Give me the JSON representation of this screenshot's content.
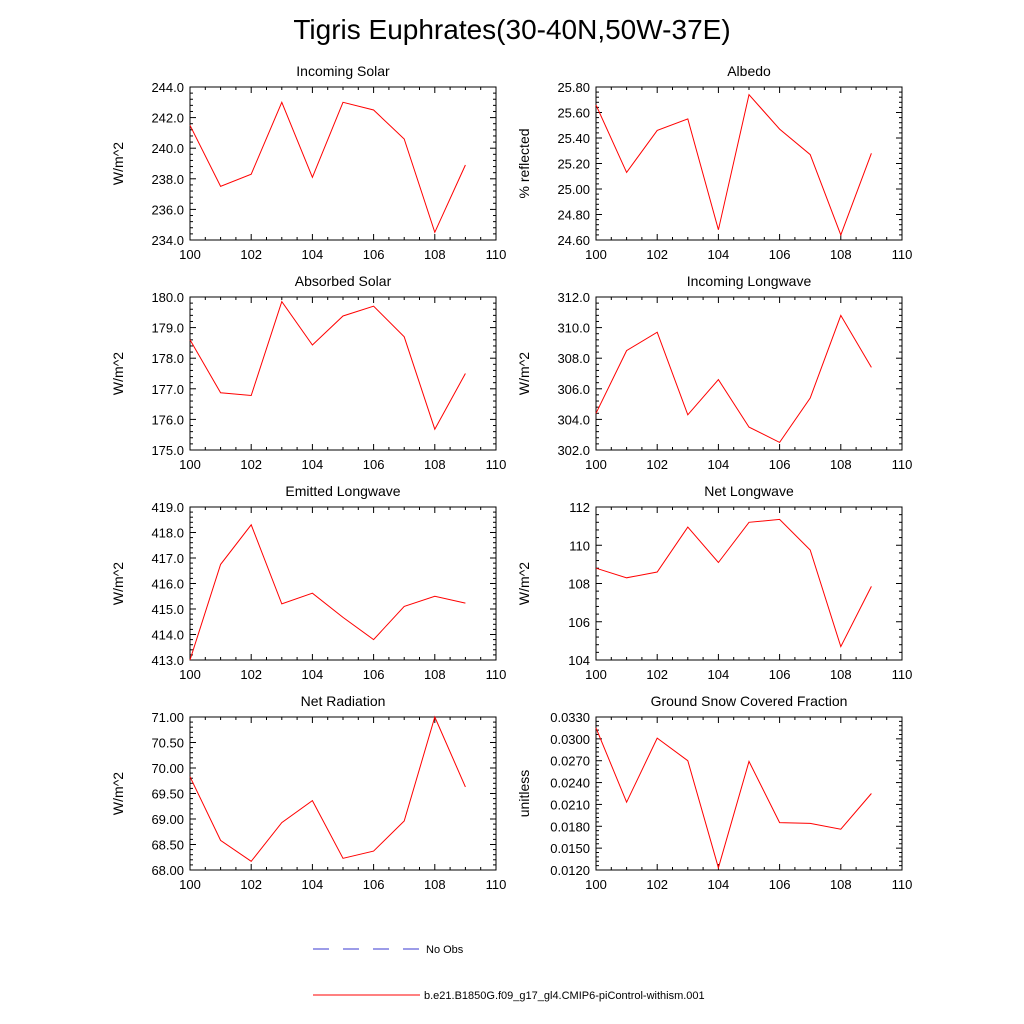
{
  "page": {
    "title": "Tigris Euphrates(30-40N,50W-37E)"
  },
  "colors": {
    "model_line": "#ff0000",
    "obs_line": "#3a3ad0",
    "axis": "#000000"
  },
  "legend": {
    "obs_label": "No Obs",
    "model_label": "b.e21.B1850G.f09_g17_gl4.CMIP6-piControl-withism.001"
  },
  "chart_data": [
    {
      "type": "line",
      "title": "Incoming Solar",
      "ylabel": "W/m^2",
      "x": [
        100,
        101,
        102,
        103,
        104,
        105,
        106,
        107,
        108,
        109
      ],
      "xlim": [
        100,
        110
      ],
      "xticks": [
        100,
        102,
        104,
        106,
        108,
        110
      ],
      "ylim": [
        234,
        244
      ],
      "yticks": [
        234,
        236,
        238,
        240,
        242,
        244
      ],
      "ytick_labels": [
        "234.0",
        "236.0",
        "238.0",
        "240.0",
        "242.0",
        "244.0"
      ],
      "series": [
        {
          "values": [
            241.5,
            237.5,
            238.3,
            243.0,
            238.1,
            243.0,
            242.5,
            240.6,
            234.5,
            238.9
          ]
        }
      ]
    },
    {
      "type": "line",
      "title": "Albedo",
      "ylabel": "% reflected",
      "x": [
        100,
        101,
        102,
        103,
        104,
        105,
        106,
        107,
        108,
        109
      ],
      "xlim": [
        100,
        110
      ],
      "xticks": [
        100,
        102,
        104,
        106,
        108,
        110
      ],
      "ylim": [
        24.6,
        25.8
      ],
      "yticks": [
        24.6,
        24.8,
        25.0,
        25.2,
        25.4,
        25.6,
        25.8
      ],
      "ytick_labels": [
        "24.60",
        "24.80",
        "25.00",
        "25.20",
        "25.40",
        "25.60",
        "25.80"
      ],
      "series": [
        {
          "values": [
            25.66,
            25.13,
            25.46,
            25.55,
            24.68,
            25.74,
            25.47,
            25.27,
            24.64,
            25.28
          ]
        }
      ]
    },
    {
      "type": "line",
      "title": "Absorbed Solar",
      "ylabel": "W/m^2",
      "x": [
        100,
        101,
        102,
        103,
        104,
        105,
        106,
        107,
        108,
        109
      ],
      "xlim": [
        100,
        110
      ],
      "xticks": [
        100,
        102,
        104,
        106,
        108,
        110
      ],
      "ylim": [
        175,
        180
      ],
      "yticks": [
        175,
        176,
        177,
        178,
        179,
        180
      ],
      "ytick_labels": [
        "175.0",
        "176.0",
        "177.0",
        "178.0",
        "179.0",
        "180.0"
      ],
      "series": [
        {
          "values": [
            178.6,
            176.87,
            176.78,
            179.85,
            178.43,
            179.38,
            179.7,
            178.7,
            175.68,
            177.5
          ]
        }
      ]
    },
    {
      "type": "line",
      "title": "Incoming Longwave",
      "ylabel": "W/m^2",
      "x": [
        100,
        101,
        102,
        103,
        104,
        105,
        106,
        107,
        108,
        109
      ],
      "xlim": [
        100,
        110
      ],
      "xticks": [
        100,
        102,
        104,
        106,
        108,
        110
      ],
      "ylim": [
        302,
        312
      ],
      "yticks": [
        302,
        304,
        306,
        308,
        310,
        312
      ],
      "ytick_labels": [
        "302.0",
        "304.0",
        "306.0",
        "308.0",
        "310.0",
        "312.0"
      ],
      "series": [
        {
          "values": [
            304.4,
            308.5,
            309.7,
            304.3,
            306.6,
            303.5,
            302.5,
            305.4,
            310.8,
            307.4
          ]
        }
      ]
    },
    {
      "type": "line",
      "title": "Emitted Longwave",
      "ylabel": "W/m^2",
      "x": [
        100,
        101,
        102,
        103,
        104,
        105,
        106,
        107,
        108,
        109
      ],
      "xlim": [
        100,
        110
      ],
      "xticks": [
        100,
        102,
        104,
        106,
        108,
        110
      ],
      "ylim": [
        413,
        419
      ],
      "yticks": [
        413,
        414,
        415,
        416,
        417,
        418,
        419
      ],
      "ytick_labels": [
        "413.0",
        "414.0",
        "415.0",
        "416.0",
        "417.0",
        "418.0",
        "419.0"
      ],
      "series": [
        {
          "values": [
            413.0,
            416.75,
            418.3,
            415.2,
            415.62,
            414.67,
            413.8,
            415.1,
            415.5,
            415.23
          ]
        }
      ]
    },
    {
      "type": "line",
      "title": "Net Longwave",
      "ylabel": "W/m^2",
      "x": [
        100,
        101,
        102,
        103,
        104,
        105,
        106,
        107,
        108,
        109
      ],
      "xlim": [
        100,
        110
      ],
      "xticks": [
        100,
        102,
        104,
        106,
        108,
        110
      ],
      "ylim": [
        104,
        112
      ],
      "yticks": [
        104,
        106,
        108,
        110,
        112
      ],
      "ytick_labels": [
        "104",
        "106",
        "108",
        "110",
        "112"
      ],
      "series": [
        {
          "values": [
            108.8,
            108.3,
            108.6,
            110.95,
            109.1,
            111.2,
            111.35,
            109.75,
            104.7,
            107.85
          ]
        }
      ]
    },
    {
      "type": "line",
      "title": "Net Radiation",
      "ylabel": "W/m^2",
      "x": [
        100,
        101,
        102,
        103,
        104,
        105,
        106,
        107,
        108,
        109
      ],
      "xlim": [
        100,
        110
      ],
      "xticks": [
        100,
        102,
        104,
        106,
        108,
        110
      ],
      "ylim": [
        68,
        71
      ],
      "yticks": [
        68,
        68.5,
        69,
        69.5,
        70,
        70.5,
        71
      ],
      "ytick_labels": [
        "68.00",
        "68.50",
        "69.00",
        "69.50",
        "70.00",
        "70.50",
        "71.00"
      ],
      "series": [
        {
          "values": [
            69.83,
            68.58,
            68.17,
            68.93,
            69.36,
            68.23,
            68.37,
            68.96,
            71.0,
            69.63
          ]
        }
      ]
    },
    {
      "type": "line",
      "title": "Ground Snow Covered Fraction",
      "ylabel": "unitless",
      "x": [
        100,
        101,
        102,
        103,
        104,
        105,
        106,
        107,
        108,
        109
      ],
      "xlim": [
        100,
        110
      ],
      "xticks": [
        100,
        102,
        104,
        106,
        108,
        110
      ],
      "ylim": [
        0.012,
        0.033
      ],
      "yticks": [
        0.012,
        0.015,
        0.018,
        0.021,
        0.024,
        0.027,
        0.03,
        0.033
      ],
      "ytick_labels": [
        "0.0120",
        "0.0150",
        "0.0180",
        "0.0210",
        "0.0240",
        "0.0270",
        "0.0300",
        "0.0330"
      ],
      "series": [
        {
          "values": [
            0.0315,
            0.0213,
            0.0301,
            0.027,
            0.0123,
            0.0269,
            0.0185,
            0.0184,
            0.0176,
            0.0225
          ]
        }
      ]
    }
  ]
}
